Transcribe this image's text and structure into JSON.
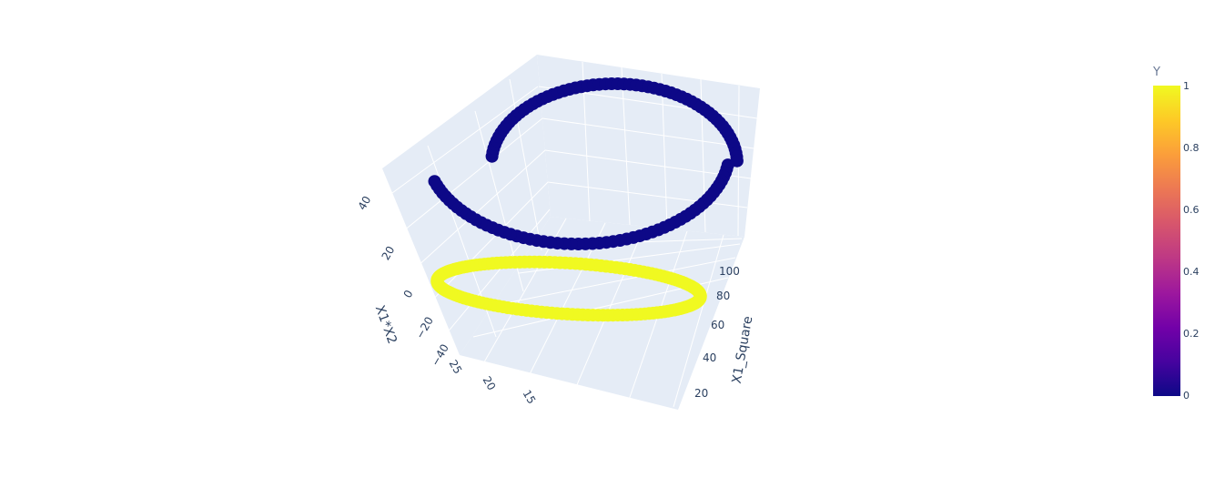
{
  "chart_data": {
    "type": "scatter3d",
    "axes": {
      "x": {
        "title": "",
        "ticks": [
          "25",
          "20",
          "15"
        ]
      },
      "y": {
        "title": "X1_Square",
        "ticks": [
          "20",
          "40",
          "60",
          "80",
          "100"
        ]
      },
      "z": {
        "title": "X1*X2",
        "ticks": [
          "40",
          "20",
          "0",
          "−20",
          "−40"
        ]
      }
    },
    "series": [
      {
        "color_value": 0,
        "description_hidden": true
      },
      {
        "color_value": 1,
        "description_hidden": true
      }
    ],
    "colorbar": {
      "title": "Y",
      "range": [
        0,
        1
      ],
      "ticks": [
        "1",
        "0.8",
        "0.6",
        "0.4",
        "0.2",
        "0"
      ],
      "colorscale": [
        "#0d0887",
        "#46039f",
        "#7201a8",
        "#9c179e",
        "#bd3786",
        "#d8576b",
        "#ed7953",
        "#fb9f3a",
        "#fdca26",
        "#f0f921"
      ]
    },
    "background_color": "#e5ecf6",
    "grid_color": "#ffffff",
    "marker_color_class0": "#0d0887",
    "marker_color_class1": "#f0f921"
  }
}
